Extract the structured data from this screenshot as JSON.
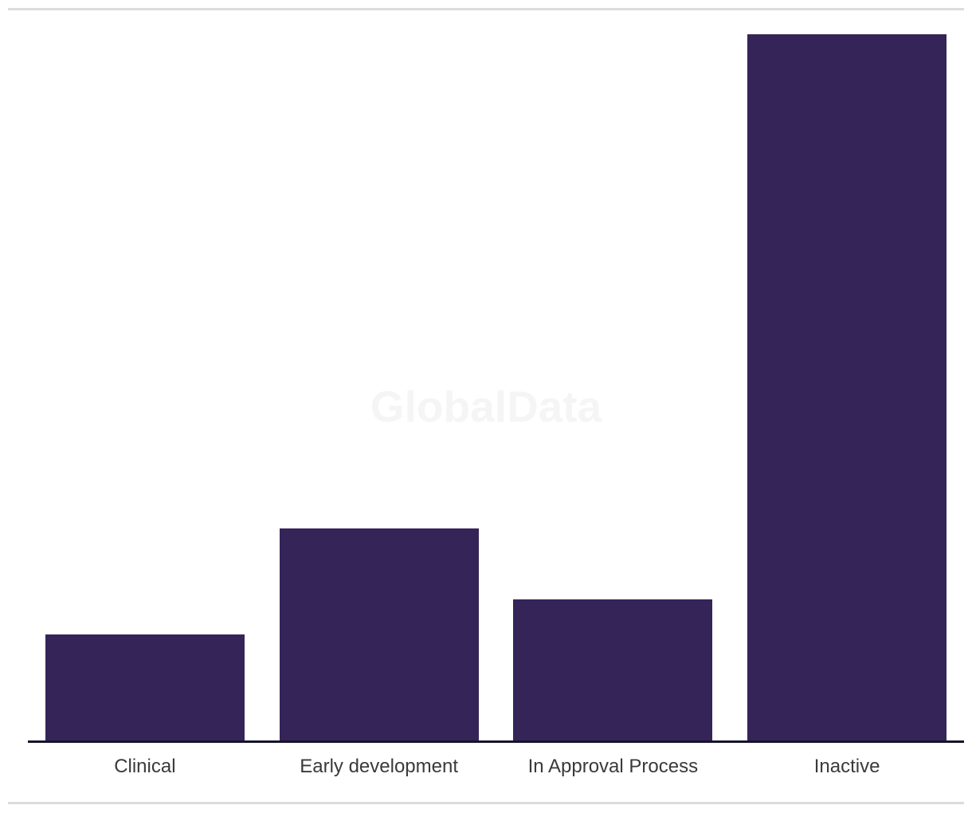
{
  "watermark": "GlobalData",
  "colors": {
    "bar": "#352458",
    "axis_line": "#15142b",
    "tick_label": "#3a3a3a",
    "divider": "#dcdcdc",
    "watermark": "#f5f5f5",
    "background": "#ffffff"
  },
  "chart_data": {
    "type": "bar",
    "categories": [
      "Clinical",
      "Early development",
      "In Approval Process",
      "Inactive"
    ],
    "values": [
      3,
      6,
      4,
      20
    ],
    "title": "",
    "xlabel": "",
    "ylabel": "",
    "ylim": [
      0,
      20
    ],
    "grid": false,
    "legend": false,
    "y_axis_visible": false,
    "bar_color": "#352458"
  }
}
